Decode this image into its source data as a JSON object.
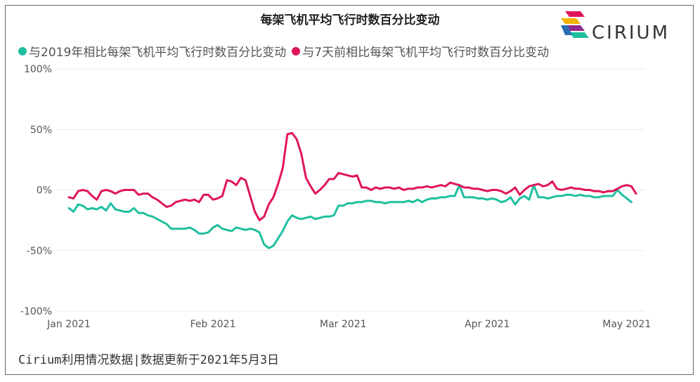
{
  "title": "每架飞机平均飞行时数百分比变动",
  "brand": {
    "name": "CIRIUM"
  },
  "footer": "Cirium利用情况数据|数据更新于2021年5月3日",
  "colors": {
    "vs2019": "#1fbf9f",
    "vs7d": "#e0155a",
    "grid": "#e9e9e9"
  },
  "chart_data": {
    "type": "line",
    "title": "每架飞机平均飞行时数百分比变动",
    "xlabel": "",
    "ylabel": "",
    "ylim": [
      -100,
      100
    ],
    "yticks": [
      100,
      50,
      0,
      -50,
      -100
    ],
    "ytick_labels": [
      "100%",
      "50%",
      "0%",
      "-50%",
      "-100%"
    ],
    "xlim": [
      "2021-01-01",
      "2021-05-03"
    ],
    "xticks": [
      "2021-01-01",
      "2021-02-01",
      "2021-03-01",
      "2021-04-01",
      "2021-05-01"
    ],
    "xtick_labels": [
      "Jan 2021",
      "Feb 2021",
      "Mar 2021",
      "Apr 2021",
      "May 2021"
    ],
    "grid": true,
    "legend": "top-left",
    "series": [
      {
        "name": "与2019年相比每架飞机平均飞行时数百分比变动",
        "points": [
          [
            "2021-01-01",
            -15
          ],
          [
            "2021-01-02",
            -18
          ],
          [
            "2021-01-03",
            -12
          ],
          [
            "2021-01-04",
            -13
          ],
          [
            "2021-01-05",
            -16
          ],
          [
            "2021-01-06",
            -15
          ],
          [
            "2021-01-07",
            -16
          ],
          [
            "2021-01-08",
            -14
          ],
          [
            "2021-01-09",
            -17
          ],
          [
            "2021-01-10",
            -11
          ],
          [
            "2021-01-11",
            -16
          ],
          [
            "2021-01-12",
            -17
          ],
          [
            "2021-01-13",
            -18
          ],
          [
            "2021-01-14",
            -18
          ],
          [
            "2021-01-15",
            -15
          ],
          [
            "2021-01-16",
            -19
          ],
          [
            "2021-01-17",
            -19
          ],
          [
            "2021-01-18",
            -21
          ],
          [
            "2021-01-19",
            -22
          ],
          [
            "2021-01-20",
            -24
          ],
          [
            "2021-01-21",
            -26
          ],
          [
            "2021-01-22",
            -28
          ],
          [
            "2021-01-23",
            -32
          ],
          [
            "2021-01-24",
            -32
          ],
          [
            "2021-01-25",
            -32
          ],
          [
            "2021-01-26",
            -32
          ],
          [
            "2021-01-27",
            -31
          ],
          [
            "2021-01-28",
            -33
          ],
          [
            "2021-01-29",
            -36
          ],
          [
            "2021-01-30",
            -36
          ],
          [
            "2021-01-31",
            -35
          ],
          [
            "2021-02-01",
            -31
          ],
          [
            "2021-02-02",
            -29
          ],
          [
            "2021-02-03",
            -32
          ],
          [
            "2021-02-04",
            -33
          ],
          [
            "2021-02-05",
            -34
          ],
          [
            "2021-02-06",
            -31
          ],
          [
            "2021-02-07",
            -32
          ],
          [
            "2021-02-08",
            -33
          ],
          [
            "2021-02-09",
            -32
          ],
          [
            "2021-02-10",
            -33
          ],
          [
            "2021-02-11",
            -35
          ],
          [
            "2021-02-12",
            -45
          ],
          [
            "2021-02-13",
            -48
          ],
          [
            "2021-02-14",
            -46
          ],
          [
            "2021-02-15",
            -40
          ],
          [
            "2021-02-16",
            -34
          ],
          [
            "2021-02-17",
            -26
          ],
          [
            "2021-02-18",
            -21
          ],
          [
            "2021-02-19",
            -23
          ],
          [
            "2021-02-20",
            -24
          ],
          [
            "2021-02-21",
            -23
          ],
          [
            "2021-02-22",
            -22
          ],
          [
            "2021-02-23",
            -24
          ],
          [
            "2021-02-24",
            -23
          ],
          [
            "2021-02-25",
            -22
          ],
          [
            "2021-02-26",
            -22
          ],
          [
            "2021-02-27",
            -21
          ],
          [
            "2021-02-28",
            -13
          ],
          [
            "2021-03-01",
            -13
          ],
          [
            "2021-03-02",
            -11
          ],
          [
            "2021-03-03",
            -11
          ],
          [
            "2021-03-04",
            -10
          ],
          [
            "2021-03-05",
            -10
          ],
          [
            "2021-03-06",
            -9
          ],
          [
            "2021-03-07",
            -9
          ],
          [
            "2021-03-08",
            -10
          ],
          [
            "2021-03-09",
            -10
          ],
          [
            "2021-03-10",
            -11
          ],
          [
            "2021-03-11",
            -10
          ],
          [
            "2021-03-12",
            -10
          ],
          [
            "2021-03-13",
            -10
          ],
          [
            "2021-03-14",
            -10
          ],
          [
            "2021-03-15",
            -9
          ],
          [
            "2021-03-16",
            -10
          ],
          [
            "2021-03-17",
            -8
          ],
          [
            "2021-03-18",
            -10
          ],
          [
            "2021-03-19",
            -8
          ],
          [
            "2021-03-20",
            -7
          ],
          [
            "2021-03-21",
            -7
          ],
          [
            "2021-03-22",
            -6
          ],
          [
            "2021-03-23",
            -6
          ],
          [
            "2021-03-24",
            -5
          ],
          [
            "2021-03-25",
            -5
          ],
          [
            "2021-03-26",
            4
          ],
          [
            "2021-03-27",
            -6
          ],
          [
            "2021-03-28",
            -6
          ],
          [
            "2021-03-29",
            -6
          ],
          [
            "2021-03-30",
            -7
          ],
          [
            "2021-03-31",
            -7
          ],
          [
            "2021-04-01",
            -8
          ],
          [
            "2021-04-02",
            -7
          ],
          [
            "2021-04-03",
            -8
          ],
          [
            "2021-04-04",
            -10
          ],
          [
            "2021-04-05",
            -9
          ],
          [
            "2021-04-06",
            -6
          ],
          [
            "2021-04-07",
            -12
          ],
          [
            "2021-04-08",
            -7
          ],
          [
            "2021-04-09",
            -5
          ],
          [
            "2021-04-10",
            -8
          ],
          [
            "2021-04-11",
            4
          ],
          [
            "2021-04-12",
            -6
          ],
          [
            "2021-04-13",
            -6
          ],
          [
            "2021-04-14",
            -7
          ],
          [
            "2021-04-15",
            -6
          ],
          [
            "2021-04-16",
            -5
          ],
          [
            "2021-04-17",
            -5
          ],
          [
            "2021-04-18",
            -4
          ],
          [
            "2021-04-19",
            -4
          ],
          [
            "2021-04-20",
            -5
          ],
          [
            "2021-04-21",
            -4
          ],
          [
            "2021-04-22",
            -5
          ],
          [
            "2021-04-23",
            -5
          ],
          [
            "2021-04-24",
            -6
          ],
          [
            "2021-04-25",
            -6
          ],
          [
            "2021-04-26",
            -5
          ],
          [
            "2021-04-27",
            -5
          ],
          [
            "2021-04-28",
            -5
          ],
          [
            "2021-04-29",
            0
          ],
          [
            "2021-04-30",
            -4
          ],
          [
            "2021-05-01",
            -7
          ],
          [
            "2021-05-02",
            -10
          ]
        ]
      },
      {
        "name": "与7天前相比每架飞机平均飞行时数百分比变动",
        "points": [
          [
            "2021-01-01",
            -6
          ],
          [
            "2021-01-02",
            -7
          ],
          [
            "2021-01-03",
            -1
          ],
          [
            "2021-01-04",
            0
          ],
          [
            "2021-01-05",
            -1
          ],
          [
            "2021-01-06",
            -5
          ],
          [
            "2021-01-07",
            -8
          ],
          [
            "2021-01-08",
            -1
          ],
          [
            "2021-01-09",
            0
          ],
          [
            "2021-01-10",
            -1
          ],
          [
            "2021-01-11",
            -3
          ],
          [
            "2021-01-12",
            -1
          ],
          [
            "2021-01-13",
            0
          ],
          [
            "2021-01-14",
            0
          ],
          [
            "2021-01-15",
            0
          ],
          [
            "2021-01-16",
            -4
          ],
          [
            "2021-01-17",
            -3
          ],
          [
            "2021-01-18",
            -3
          ],
          [
            "2021-01-19",
            -6
          ],
          [
            "2021-01-20",
            -8
          ],
          [
            "2021-01-21",
            -11
          ],
          [
            "2021-01-22",
            -14
          ],
          [
            "2021-01-23",
            -13
          ],
          [
            "2021-01-24",
            -10
          ],
          [
            "2021-01-25",
            -9
          ],
          [
            "2021-01-26",
            -8
          ],
          [
            "2021-01-27",
            -9
          ],
          [
            "2021-01-28",
            -8
          ],
          [
            "2021-01-29",
            -10
          ],
          [
            "2021-01-30",
            -4
          ],
          [
            "2021-01-31",
            -4
          ],
          [
            "2021-02-01",
            -8
          ],
          [
            "2021-02-02",
            -7
          ],
          [
            "2021-02-03",
            -5
          ],
          [
            "2021-02-04",
            8
          ],
          [
            "2021-02-05",
            7
          ],
          [
            "2021-02-06",
            4
          ],
          [
            "2021-02-07",
            10
          ],
          [
            "2021-02-08",
            8
          ],
          [
            "2021-02-09",
            -5
          ],
          [
            "2021-02-10",
            -18
          ],
          [
            "2021-02-11",
            -25
          ],
          [
            "2021-02-12",
            -22
          ],
          [
            "2021-02-13",
            -12
          ],
          [
            "2021-02-14",
            -6
          ],
          [
            "2021-02-15",
            5
          ],
          [
            "2021-02-16",
            18
          ],
          [
            "2021-02-17",
            46
          ],
          [
            "2021-02-18",
            47
          ],
          [
            "2021-02-19",
            42
          ],
          [
            "2021-02-20",
            30
          ],
          [
            "2021-02-21",
            10
          ],
          [
            "2021-02-22",
            3
          ],
          [
            "2021-02-23",
            -3
          ],
          [
            "2021-02-24",
            0
          ],
          [
            "2021-02-25",
            4
          ],
          [
            "2021-02-26",
            9
          ],
          [
            "2021-02-27",
            9
          ],
          [
            "2021-02-28",
            14
          ],
          [
            "2021-03-01",
            13
          ],
          [
            "2021-03-02",
            12
          ],
          [
            "2021-03-03",
            11
          ],
          [
            "2021-03-04",
            12
          ],
          [
            "2021-03-05",
            2
          ],
          [
            "2021-03-06",
            2
          ],
          [
            "2021-03-07",
            0
          ],
          [
            "2021-03-08",
            2
          ],
          [
            "2021-03-09",
            1
          ],
          [
            "2021-03-10",
            2
          ],
          [
            "2021-03-11",
            2
          ],
          [
            "2021-03-12",
            1
          ],
          [
            "2021-03-13",
            2
          ],
          [
            "2021-03-14",
            0
          ],
          [
            "2021-03-15",
            1
          ],
          [
            "2021-03-16",
            1
          ],
          [
            "2021-03-17",
            2
          ],
          [
            "2021-03-18",
            2
          ],
          [
            "2021-03-19",
            3
          ],
          [
            "2021-03-20",
            2
          ],
          [
            "2021-03-21",
            3
          ],
          [
            "2021-03-22",
            4
          ],
          [
            "2021-03-23",
            3
          ],
          [
            "2021-03-24",
            6
          ],
          [
            "2021-03-25",
            5
          ],
          [
            "2021-03-26",
            4
          ],
          [
            "2021-03-27",
            2
          ],
          [
            "2021-03-28",
            2
          ],
          [
            "2021-03-29",
            1
          ],
          [
            "2021-03-30",
            1
          ],
          [
            "2021-03-31",
            0
          ],
          [
            "2021-04-01",
            -1
          ],
          [
            "2021-04-02",
            0
          ],
          [
            "2021-04-03",
            0
          ],
          [
            "2021-04-04",
            -1
          ],
          [
            "2021-04-05",
            -3
          ],
          [
            "2021-04-06",
            -1
          ],
          [
            "2021-04-07",
            2
          ],
          [
            "2021-04-08",
            -4
          ],
          [
            "2021-04-09",
            0
          ],
          [
            "2021-04-10",
            3
          ],
          [
            "2021-04-11",
            4
          ],
          [
            "2021-04-12",
            5
          ],
          [
            "2021-04-13",
            3
          ],
          [
            "2021-04-14",
            4
          ],
          [
            "2021-04-15",
            7
          ],
          [
            "2021-04-16",
            1
          ],
          [
            "2021-04-17",
            0
          ],
          [
            "2021-04-18",
            1
          ],
          [
            "2021-04-19",
            2
          ],
          [
            "2021-04-20",
            1
          ],
          [
            "2021-04-21",
            1
          ],
          [
            "2021-04-22",
            0
          ],
          [
            "2021-04-23",
            0
          ],
          [
            "2021-04-24",
            -1
          ],
          [
            "2021-04-25",
            -1
          ],
          [
            "2021-04-26",
            -2
          ],
          [
            "2021-04-27",
            -1
          ],
          [
            "2021-04-28",
            -1
          ],
          [
            "2021-04-29",
            1
          ],
          [
            "2021-04-30",
            3
          ],
          [
            "2021-05-01",
            4
          ],
          [
            "2021-05-02",
            3
          ],
          [
            "2021-05-03",
            -3
          ]
        ]
      }
    ]
  }
}
